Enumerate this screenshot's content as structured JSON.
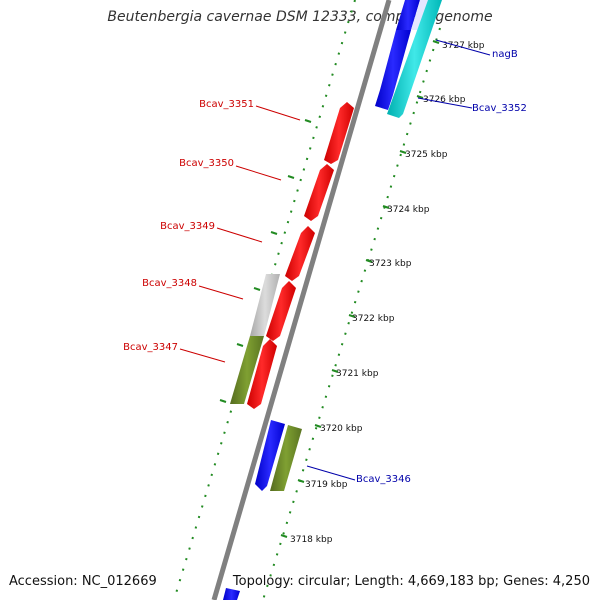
{
  "title": "Beutenbergia cavernae DSM 12333, complete genome",
  "footer": {
    "accession": "Accession: NC_012669",
    "summary": "Topology: circular; Length: 4,669,183 bp; Genes: 4,250"
  },
  "scale_labels": [
    "3727 kbp",
    "3726 kbp",
    "3725 kbp",
    "3724 kbp",
    "3723 kbp",
    "3722 kbp",
    "3721 kbp",
    "3720 kbp",
    "3719 kbp",
    "3718 kbp"
  ],
  "gene_labels": {
    "nagB": "nagB",
    "bcav_3352": "Bcav_3352",
    "bcav_3351": "Bcav_3351",
    "bcav_3350": "Bcav_3350",
    "bcav_3349": "Bcav_3349",
    "bcav_3348": "Bcav_3348",
    "bcav_3347": "Bcav_3347",
    "bcav_3346": "Bcav_3346"
  },
  "colors": {
    "red_label": "#cc0000",
    "blue_label": "#0000aa",
    "red_gene": "#ff0000",
    "blue_gene": "#0000ff",
    "cyan_gene": "#00c8c8",
    "olive_gene": "#6b8e23",
    "gray_gene": "#c0c0c0",
    "backbone": "#808080",
    "ticks": "#228b22"
  }
}
